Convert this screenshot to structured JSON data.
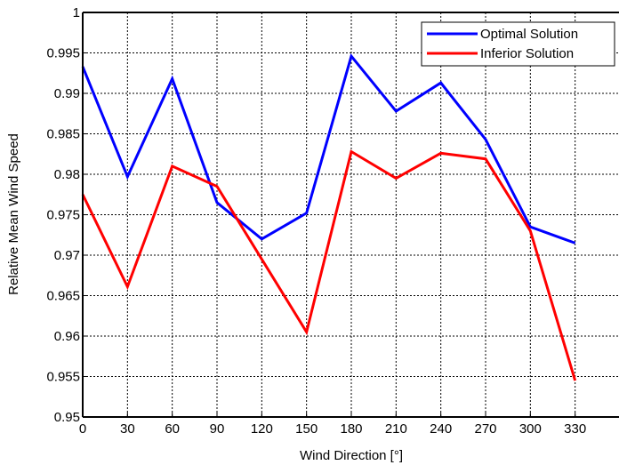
{
  "chart_data": {
    "type": "line",
    "x": [
      0,
      30,
      60,
      90,
      120,
      150,
      180,
      210,
      240,
      270,
      300,
      330
    ],
    "xlim": [
      0,
      360
    ],
    "ylim": [
      0.95,
      1.0
    ],
    "xticks": [
      "0",
      "30",
      "60",
      "90",
      "120",
      "150",
      "180",
      "210",
      "240",
      "270",
      "300",
      "330"
    ],
    "yticks": [
      "0.95",
      "0.955",
      "0.96",
      "0.965",
      "0.97",
      "0.975",
      "0.98",
      "0.985",
      "0.99",
      "0.995",
      "1"
    ],
    "xlabel": "Wind Direction [°]",
    "ylabel": "Relative Mean Wind Speed",
    "grid": true,
    "legend_position": "top-right",
    "series": [
      {
        "name": "Optimal Solution",
        "color": "#0000ff",
        "values": [
          0.9933,
          0.9797,
          0.9918,
          0.9765,
          0.972,
          0.9752,
          0.9946,
          0.9878,
          0.9913,
          0.9843,
          0.9735,
          0.9715
        ]
      },
      {
        "name": "Inferior Solution",
        "color": "#ff0000",
        "values": [
          0.9775,
          0.9661,
          0.981,
          0.9785,
          0.9695,
          0.9605,
          0.9828,
          0.9795,
          0.9826,
          0.9819,
          0.973,
          0.9545
        ]
      }
    ]
  }
}
